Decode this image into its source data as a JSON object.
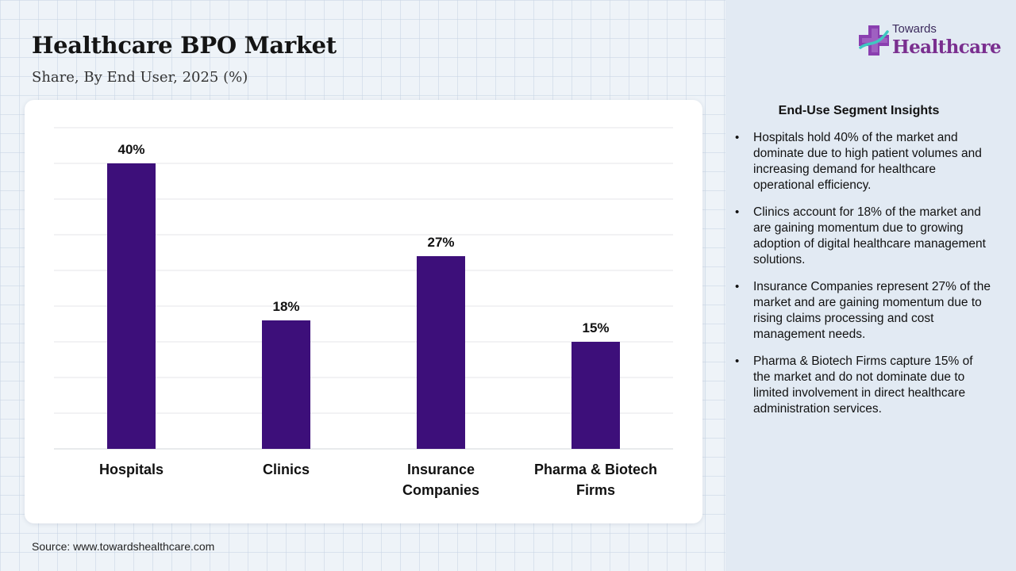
{
  "header": {
    "title": "Healthcare BPO Market",
    "subtitle": "Share, By End User, 2025 (%)"
  },
  "logo": {
    "top_text": "Towards",
    "bottom_text": "Healthcare",
    "icon": "medical-cross-icon"
  },
  "chart_data": {
    "type": "bar",
    "categories": [
      [
        "Hospitals"
      ],
      [
        "Clinics"
      ],
      [
        "Insurance",
        "Companies"
      ],
      [
        "Pharma & Biotech",
        "Firms"
      ]
    ],
    "values": [
      40,
      18,
      27,
      15
    ],
    "value_labels": [
      "40%",
      "18%",
      "27%",
      "15%"
    ],
    "ylim": [
      0,
      45
    ],
    "grid": true,
    "bar_color": "#3d0f7a",
    "title": "",
    "xlabel": "",
    "ylabel": ""
  },
  "insights": {
    "title": "End-Use Segment Insights",
    "items": [
      "Hospitals hold 40% of the market and dominate due to high patient volumes and increasing demand for healthcare operational efficiency.",
      "Clinics account for 18% of the market and are gaining momentum due to growing adoption of digital healthcare management solutions.",
      "Insurance Companies represent 27% of the market and are gaining momentum due to rising claims processing and cost management needs.",
      "Pharma & Biotech Firms capture 15% of the market and do not dominate due to limited involvement in direct healthcare administration services."
    ]
  },
  "footer": {
    "source": "Source: www.towardshealthcare.com"
  },
  "colors": {
    "bar": "#3d0f7a",
    "logo_purple": "#7a2f8f",
    "panel": "#e2eaf3"
  }
}
